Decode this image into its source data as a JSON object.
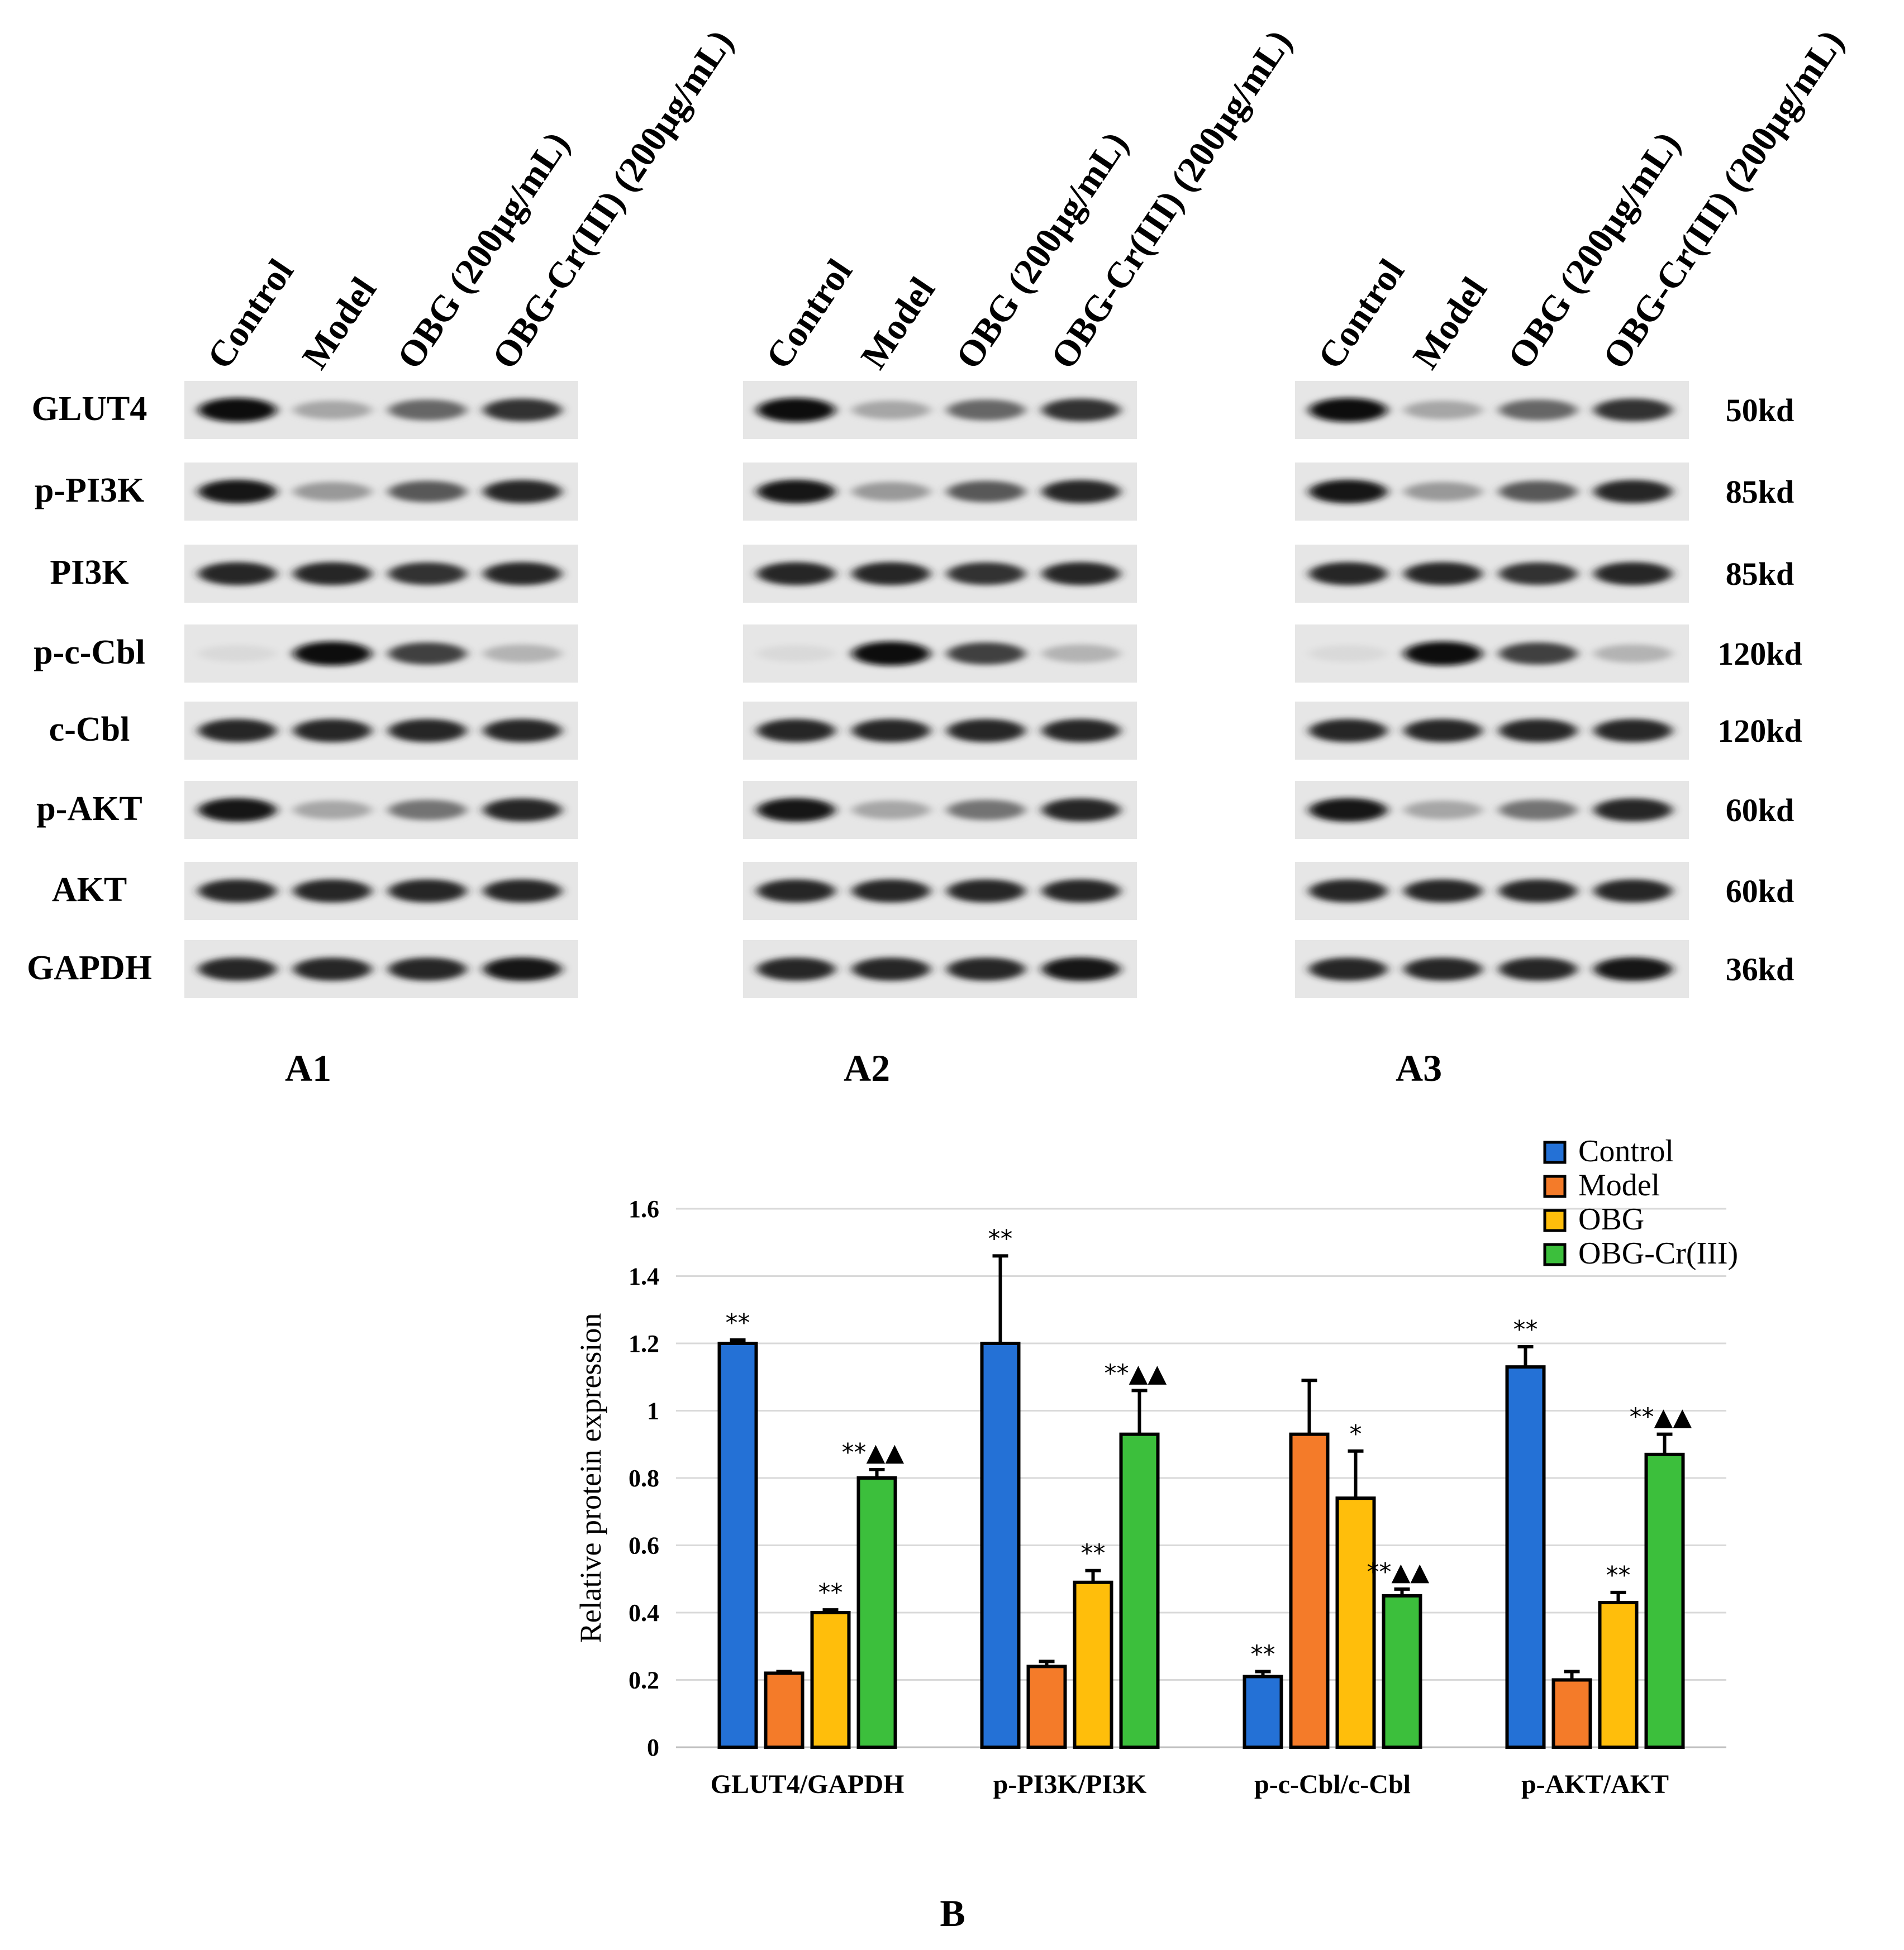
{
  "blots": {
    "lanes": [
      "Control",
      "Model",
      "OBG (200μg/mL)",
      "OBG-Cr(III) (200μg/mL)"
    ],
    "proteins": [
      "GLUT4",
      "p-PI3K",
      "PI3K",
      "p-c-Cbl",
      "c-Cbl",
      "p-AKT",
      "AKT",
      "GAPDH"
    ],
    "kd": [
      "50kd",
      "85kd",
      "85kd",
      "120kd",
      "120kd",
      "60kd",
      "60kd",
      "36kd"
    ],
    "panels": [
      "A1",
      "A2",
      "A3"
    ],
    "band_intensity": {
      "GLUT4": [
        0.95,
        0.35,
        0.6,
        0.8
      ],
      "p-PI3K": [
        0.9,
        0.4,
        0.65,
        0.85
      ],
      "PI3K": [
        0.85,
        0.85,
        0.8,
        0.85
      ],
      "p-c-Cbl": [
        0.15,
        0.95,
        0.75,
        0.3
      ],
      "c-Cbl": [
        0.85,
        0.85,
        0.85,
        0.85
      ],
      "p-AKT": [
        0.9,
        0.35,
        0.55,
        0.85
      ],
      "AKT": [
        0.85,
        0.85,
        0.85,
        0.85
      ],
      "GAPDH": [
        0.85,
        0.85,
        0.85,
        0.9
      ]
    }
  },
  "chart_data": {
    "type": "bar",
    "panel": "B",
    "ylabel": "Relative protein expression",
    "ylim": [
      0,
      1.6
    ],
    "yticks": [
      "0",
      "0.2",
      "0.4",
      "0.6",
      "0.8",
      "1",
      "1.2",
      "1.4",
      "1.6"
    ],
    "grid": true,
    "legend_position": "top-right",
    "categories": [
      "GLUT4/GAPDH",
      "p-PI3K/PI3K",
      "p-c-Cbl/c-Cbl",
      "p-AKT/AKT"
    ],
    "series": [
      {
        "name": "Control",
        "color": "#2471d6",
        "values": [
          1.2,
          1.2,
          0.21,
          1.13
        ],
        "errors": [
          0.01,
          0.26,
          0.015,
          0.06
        ],
        "sig": [
          "**",
          "**",
          "**",
          "**"
        ]
      },
      {
        "name": "Model",
        "color": "#f47b29",
        "values": [
          0.22,
          0.24,
          0.93,
          0.2
        ],
        "errors": [
          0.005,
          0.015,
          0.16,
          0.025
        ],
        "sig": [
          "",
          "",
          "",
          ""
        ]
      },
      {
        "name": "OBG",
        "color": "#ffbe0b",
        "values": [
          0.4,
          0.49,
          0.74,
          0.43
        ],
        "errors": [
          0.008,
          0.035,
          0.14,
          0.03
        ],
        "sig": [
          "**",
          "**",
          "*",
          "**"
        ]
      },
      {
        "name": "OBG-Cr(III)",
        "color": "#3cbf3c",
        "values": [
          0.8,
          0.93,
          0.45,
          0.87
        ],
        "errors": [
          0.025,
          0.13,
          0.02,
          0.06
        ],
        "sig": [
          "**▲▲",
          "**▲▲",
          "**▲▲",
          "**▲▲"
        ]
      }
    ]
  }
}
